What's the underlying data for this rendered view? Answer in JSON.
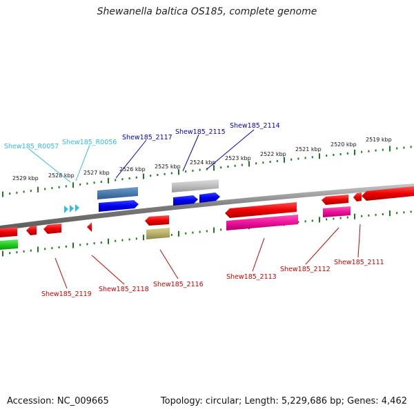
{
  "title": "Shewanella baltica OS185, complete genome",
  "footer": {
    "accession": "Accession: NC_009665",
    "summary": "Topology: circular; Length: 5,229,686 bp; Genes: 4,462"
  },
  "colors": {
    "backbone": "#8a8a8a",
    "tick": "#1a7a1a",
    "label_red": "#cc0000",
    "label_blue": "#0000bb",
    "label_cyan": "#33bbdd"
  },
  "kbp_labels": [
    "2529 kbp",
    "2528 kbp",
    "2527 kbp",
    "2526 kbp",
    "2525 kbp",
    "2524 kbp",
    "2523 kbp",
    "2522 kbp",
    "2521 kbp",
    "2520 kbp",
    "2519 kbp"
  ],
  "gene_labels": {
    "above": [
      {
        "text": "Shew185_R0057",
        "color": "cyan"
      },
      {
        "text": "Shew185_R0056",
        "color": "cyan"
      },
      {
        "text": "Shew185_2117",
        "color": "blue"
      },
      {
        "text": "Shew185_2115",
        "color": "blue"
      },
      {
        "text": "Shew185_2114",
        "color": "blue"
      }
    ],
    "below": [
      {
        "text": "Shew185_2119",
        "color": "red"
      },
      {
        "text": "Shew185_2118",
        "color": "red"
      },
      {
        "text": "Shew185_2116",
        "color": "red"
      },
      {
        "text": "Shew185_2113",
        "color": "red"
      },
      {
        "text": "Shew185_2112",
        "color": "red"
      },
      {
        "text": "Shew185_2111",
        "color": "red"
      }
    ]
  }
}
